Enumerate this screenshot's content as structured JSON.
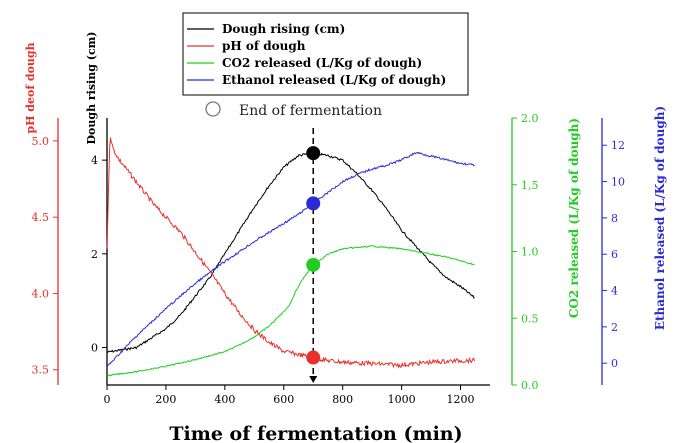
{
  "chart_data": {
    "type": "line",
    "xlabel": "Time of fermentation (min)",
    "xlim": [
      0,
      1300
    ],
    "xticks": [
      0,
      200,
      400,
      600,
      800,
      1000,
      1200
    ],
    "axes": {
      "ph": {
        "label": "pH deof dough",
        "color": "#e8302c",
        "ylim": [
          3.4,
          5.15
        ],
        "ticks": [
          "3.5",
          "4.0",
          "4.5",
          "5.0"
        ]
      },
      "dough": {
        "label": "Dough rising (cm)",
        "color": "#000000",
        "ylim": [
          -0.8,
          4.9
        ],
        "ticks": [
          "0",
          "2",
          "4"
        ]
      },
      "co2": {
        "label": "CO2 released (L/Kg of dough)",
        "color": "#22cc22",
        "ylim": [
          0.0,
          2.0
        ],
        "ticks": [
          "0.0",
          "0.5",
          "1.0",
          "1,5",
          "2.0"
        ]
      },
      "ethanol": {
        "label": "Ethanol released (L/Kg of dough)",
        "color": "#2a2ad6",
        "ylim": [
          -1.2,
          13.5
        ],
        "ticks": [
          "0",
          "2",
          "4",
          "6",
          "8",
          "10",
          "12"
        ]
      }
    },
    "series": [
      {
        "name": "Dough rising (cm)",
        "axis": "dough",
        "color": "#000000",
        "x": [
          0,
          50,
          100,
          150,
          200,
          250,
          300,
          350,
          400,
          450,
          500,
          550,
          600,
          650,
          700,
          750,
          800,
          850,
          900,
          950,
          1000,
          1050,
          1100,
          1150,
          1200,
          1250
        ],
        "y": [
          -0.1,
          -0.05,
          0.0,
          0.2,
          0.4,
          0.7,
          1.1,
          1.5,
          2.0,
          2.5,
          3.0,
          3.45,
          3.85,
          4.1,
          4.15,
          4.1,
          4.0,
          3.7,
          3.35,
          2.95,
          2.5,
          2.15,
          1.8,
          1.5,
          1.3,
          1.05
        ]
      },
      {
        "name": "pH of dough",
        "axis": "ph",
        "color": "#e8302c",
        "x": [
          0,
          10,
          20,
          40,
          80,
          120,
          160,
          200,
          250,
          300,
          350,
          400,
          450,
          500,
          550,
          600,
          650,
          700,
          750,
          800,
          900,
          1000,
          1100,
          1200,
          1250
        ],
        "y": [
          4.3,
          5.05,
          4.95,
          4.88,
          4.78,
          4.68,
          4.58,
          4.5,
          4.4,
          4.27,
          4.14,
          4.0,
          3.87,
          3.76,
          3.68,
          3.62,
          3.6,
          3.58,
          3.56,
          3.55,
          3.54,
          3.53,
          3.55,
          3.56,
          3.56
        ]
      },
      {
        "name": "CO2 released (L/Kg of dough)",
        "axis": "co2",
        "color": "#22cc22",
        "x": [
          0,
          100,
          200,
          300,
          400,
          450,
          500,
          550,
          600,
          620,
          640,
          660,
          680,
          700,
          750,
          800,
          850,
          900,
          950,
          1000,
          1050,
          1100,
          1150,
          1200,
          1250
        ],
        "y": [
          0.07,
          0.1,
          0.14,
          0.19,
          0.25,
          0.3,
          0.36,
          0.44,
          0.55,
          0.6,
          0.7,
          0.78,
          0.84,
          0.9,
          0.98,
          1.02,
          1.03,
          1.04,
          1.03,
          1.02,
          1.0,
          0.98,
          0.96,
          0.93,
          0.9
        ]
      },
      {
        "name": "Ethanol released (L/Kg of dough)",
        "axis": "ethanol",
        "color": "#2a2ad6",
        "x": [
          0,
          100,
          200,
          300,
          400,
          500,
          600,
          650,
          700,
          750,
          800,
          850,
          900,
          950,
          1000,
          1050,
          1100,
          1150,
          1200,
          1250
        ],
        "y": [
          -0.2,
          1.5,
          3.0,
          4.4,
          5.6,
          6.7,
          7.7,
          8.2,
          8.8,
          9.4,
          10.0,
          10.4,
          10.7,
          10.9,
          11.2,
          11.6,
          11.4,
          11.2,
          11.0,
          10.9
        ]
      }
    ],
    "end_of_fermentation": {
      "label": "End of fermentation",
      "x": 700,
      "markers": [
        {
          "axis": "dough",
          "y": 4.15,
          "color": "#000000"
        },
        {
          "axis": "ethanol",
          "y": 8.8,
          "color": "#2a2ad6"
        },
        {
          "axis": "co2",
          "y": 0.9,
          "color": "#22cc22"
        },
        {
          "axis": "ph",
          "y": 3.58,
          "color": "#e8302c"
        }
      ]
    },
    "legend": {
      "placement": "top-center",
      "entries": [
        "Dough rising (cm)",
        "pH of dough",
        "CO2 released (L/Kg of dough)",
        "Ethanol released (L/Kg of dough)"
      ]
    }
  }
}
